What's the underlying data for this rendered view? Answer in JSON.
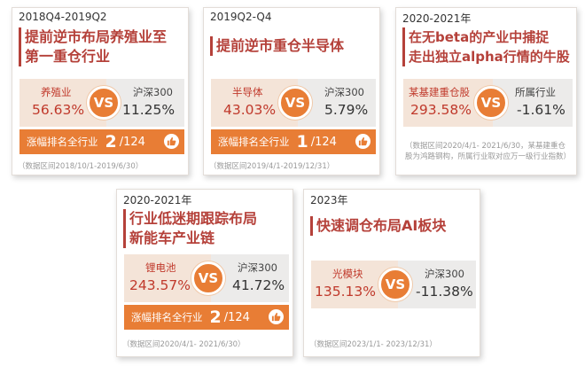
{
  "cards": [
    {
      "period": "2018Q4-2019Q2",
      "title": [
        "提前逆市布局养殖业至",
        "第一重仓行业"
      ],
      "left_name": "养殖业",
      "left_value": "56.63%",
      "right_name": "沪深300",
      "right_value": "11.25%",
      "rank_label": "涨幅排名全行业",
      "rank_position": "2",
      "rank_total": "/124",
      "note": "（数据区间2018/10/1-2019/6/30）"
    },
    {
      "period": "2019Q2-Q4",
      "title": [
        "提前逆市重仓半导体"
      ],
      "left_name": "半导体",
      "left_value": "43.03%",
      "right_name": "沪深300",
      "right_value": "5.79%",
      "rank_label": "涨幅排名全行业",
      "rank_position": "1",
      "rank_total": "/124",
      "note": "（数据区间2019/4/1-2019/12/31）"
    },
    {
      "period": "2020-2021年",
      "title": [
        "在无beta的产业中捕捉",
        "走出独立alpha行情的牛股"
      ],
      "left_name": "某基建重仓股",
      "left_value": "293.58%",
      "right_name": "所属行业",
      "right_value": "-1.61%",
      "note": "（数据区间2020/4/1- 2021/6/30，某基建重仓股为鸿路钢构，所属行业取对应万一级行业指数）"
    },
    {
      "period": "2020-2021年",
      "title": [
        "行业低迷期跟踪布局",
        "新能车产业链"
      ],
      "left_name": "锂电池",
      "left_value": "243.57%",
      "right_name": "沪深300",
      "right_value": "41.72%",
      "rank_label": "涨幅排名全行业",
      "rank_position": "2",
      "rank_total": "/124",
      "note": "（数据区间2020/4/1- 2021/6/30）"
    },
    {
      "period": "2023年",
      "title": [
        "快速调仓布局AI板块"
      ],
      "left_name": "光模块",
      "left_value": "135.13%",
      "right_name": "沪深300",
      "right_value": "-11.38%",
      "note": "（数据区间2023/1/1- 2023/12/31）"
    }
  ],
  "vs_label": "VS",
  "colors": {
    "accent": "#b5413a",
    "orange": "#e87d35",
    "left_bg": "#f4e4d8",
    "right_bg": "#ecebea"
  },
  "icons": {
    "thumb": "thumbs-up-icon"
  }
}
